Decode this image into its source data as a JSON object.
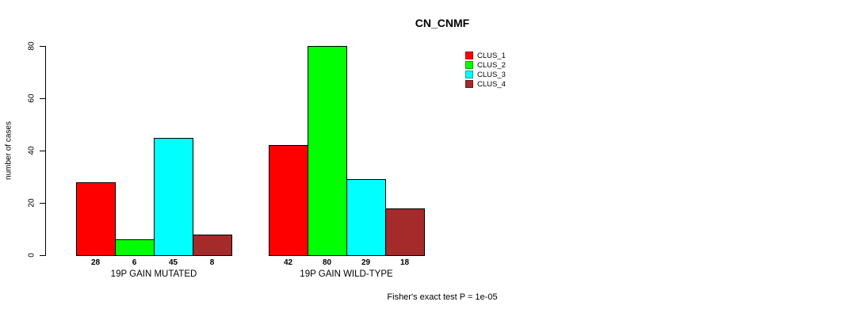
{
  "chart_data": {
    "type": "bar",
    "title": "CN_CNMF",
    "ylabel": "number of cases",
    "ylim": [
      0,
      80
    ],
    "yticks": [
      0,
      20,
      40,
      60,
      80
    ],
    "grid": false,
    "legend_position": "top-right",
    "categories": [
      "19P GAIN MUTATED",
      "19P GAIN WILD-TYPE"
    ],
    "series": [
      {
        "name": "CLUS_1",
        "color": "#ff0000",
        "values": [
          28,
          42
        ]
      },
      {
        "name": "CLUS_2",
        "color": "#00ff00",
        "values": [
          6,
          80
        ]
      },
      {
        "name": "CLUS_3",
        "color": "#00ffff",
        "values": [
          45,
          29
        ]
      },
      {
        "name": "CLUS_4",
        "color": "#a52a2a",
        "values": [
          8,
          18
        ]
      }
    ],
    "bar_value_labels": true,
    "annotation": "Fisher's exact test P = 1e-05"
  }
}
